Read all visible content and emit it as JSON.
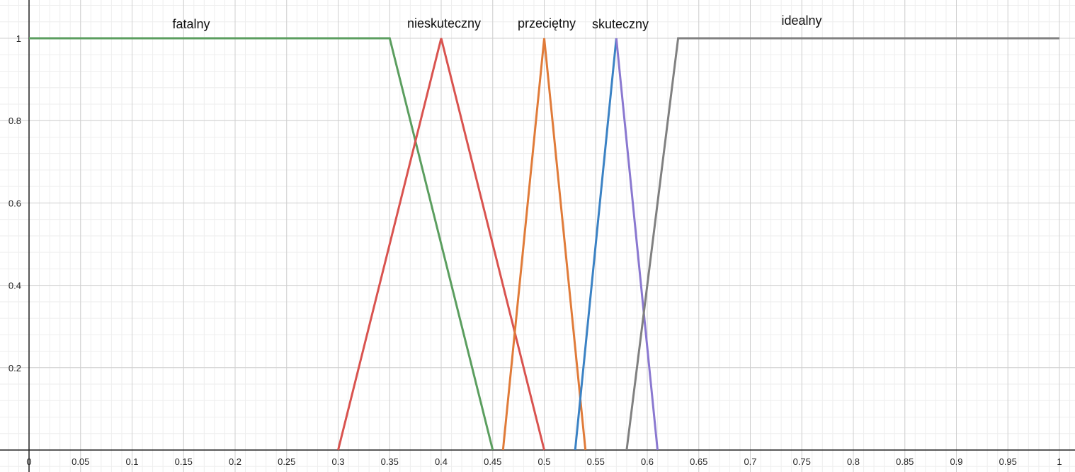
{
  "chart_data": {
    "type": "line",
    "title": "",
    "xlabel": "",
    "ylabel": "",
    "xlim": [
      0,
      1.0
    ],
    "ylim": [
      0,
      1.0
    ],
    "grid": true,
    "x_ticks": [
      "0",
      "0.05",
      "0.1",
      "0.15",
      "0.2",
      "0.25",
      "0.3",
      "0.35",
      "0.4",
      "0.45",
      "0.5",
      "0.55",
      "0.6",
      "0.65",
      "0.7",
      "0.75",
      "0.8",
      "0.85",
      "0.9",
      "0.95",
      "1"
    ],
    "y_ticks": [
      "0.2",
      "0.4",
      "0.6",
      "0.8",
      "1"
    ],
    "series": [
      {
        "name": "fatalny",
        "color": "#5b9e5f",
        "x": [
          0,
          0.35,
          0.45
        ],
        "y": [
          1,
          1,
          0
        ]
      },
      {
        "name": "nieskuteczny",
        "color": "#d9534f",
        "x": [
          0.3,
          0.4,
          0.5
        ],
        "y": [
          0,
          1,
          0
        ]
      },
      {
        "name": "przeciętny",
        "color": "#e07b39",
        "x": [
          0.46,
          0.5,
          0.54
        ],
        "y": [
          0,
          1,
          0
        ]
      },
      {
        "name": "skuteczny",
        "color": "#3b82c4",
        "x": [
          0.53,
          0.57
        ],
        "y": [
          0,
          1
        ]
      },
      {
        "name": "",
        "color": "#8a78d0",
        "x": [
          0.57,
          0.61
        ],
        "y": [
          1,
          0
        ]
      },
      {
        "name": "idealny",
        "color": "#808080",
        "x": [
          0.58,
          0.63,
          1.0
        ],
        "y": [
          0,
          1,
          1
        ]
      }
    ],
    "series_labels": [
      "fatalny",
      "nieskuteczny",
      "przeciętny",
      "skuteczny",
      "idealny"
    ]
  }
}
